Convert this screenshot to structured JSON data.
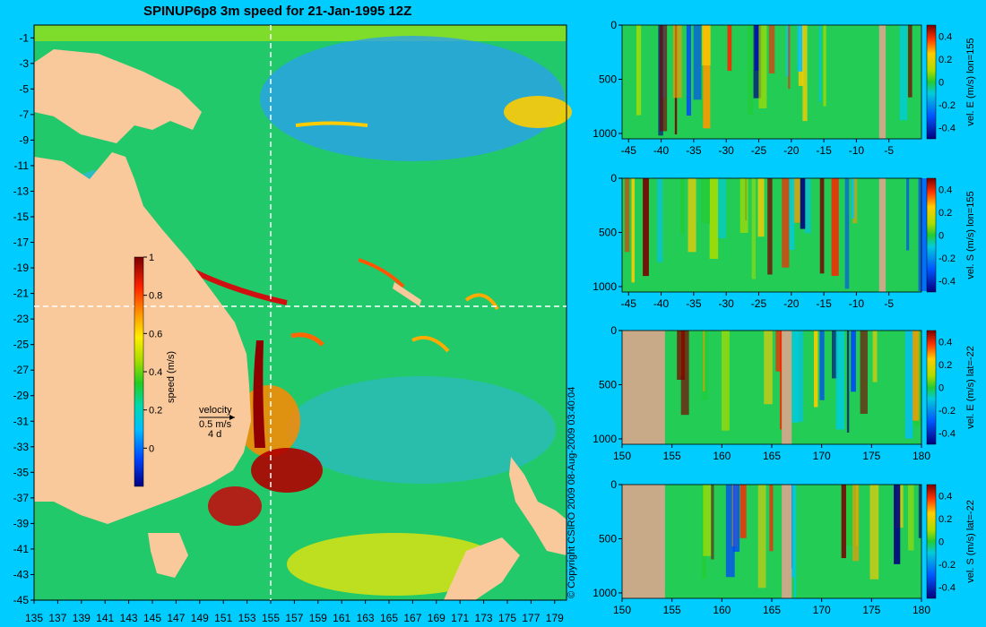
{
  "title": "SPINUP6p8 3m speed for 21-Jan-1995 12Z",
  "copyright": "© Copyright CSIRO 2009   08-Aug-2009 03:40:04",
  "colors": {
    "background": "#00ccff",
    "land": "#f9c89b",
    "section_land": "#c8aa88",
    "crosshair": "#ffffff"
  },
  "chart_data": [
    {
      "type": "heatmap",
      "name": "map",
      "xlabel": "",
      "ylabel": "",
      "xticks": [
        "135",
        "137",
        "139",
        "141",
        "143",
        "145",
        "147",
        "149",
        "151",
        "153",
        "155",
        "157",
        "159",
        "161",
        "163",
        "165",
        "167",
        "169",
        "171",
        "173",
        "175",
        "177",
        "179"
      ],
      "yticks": [
        "-1",
        "-3",
        "-5",
        "-7",
        "-9",
        "-11",
        "-13",
        "-15",
        "-17",
        "-19",
        "-21",
        "-23",
        "-25",
        "-27",
        "-29",
        "-31",
        "-33",
        "-35",
        "-37",
        "-39",
        "-41",
        "-43",
        "-45"
      ],
      "xlim": [
        135,
        180
      ],
      "ylim": [
        -45,
        0
      ],
      "crosshair": {
        "lon": 155,
        "lat": -22
      },
      "colorbar": {
        "label": "speed (m/s)",
        "ticks": [
          "1",
          "0.8",
          "0.6",
          "0.4",
          "0.2",
          "0"
        ],
        "range": [
          -0.2,
          1
        ]
      },
      "velocity_legend": {
        "title": "velocity",
        "value": "0.5 m/s",
        "note": "4 d"
      }
    },
    {
      "type": "heatmap",
      "name": "section-1",
      "label": "vel. E (m/s) lon=155",
      "xticks": [
        "-45",
        "-40",
        "-35",
        "-30",
        "-25",
        "-20",
        "-15",
        "-10",
        "-5"
      ],
      "xlim": [
        -46,
        0
      ],
      "yticks": [
        "0",
        "500",
        "1000"
      ],
      "ylim": [
        1050,
        0
      ],
      "colorbar_ticks": [
        "0.4",
        "0.2",
        "0",
        "-0.2",
        "-0.4"
      ]
    },
    {
      "type": "heatmap",
      "name": "section-2",
      "label": "vel. S (m/s) lon=155",
      "xticks": [
        "-45",
        "-40",
        "-35",
        "-30",
        "-25",
        "-20",
        "-15",
        "-10",
        "-5"
      ],
      "xlim": [
        -46,
        0
      ],
      "yticks": [
        "0",
        "500",
        "1000"
      ],
      "ylim": [
        1050,
        0
      ],
      "colorbar_ticks": [
        "0.4",
        "0.2",
        "0",
        "-0.2",
        "-0.4"
      ]
    },
    {
      "type": "heatmap",
      "name": "section-3",
      "label": "vel. E (m/s) lat=-22",
      "xticks": [
        "150",
        "155",
        "160",
        "165",
        "170",
        "175",
        "180"
      ],
      "xlim": [
        150,
        180
      ],
      "yticks": [
        "0",
        "500",
        "1000"
      ],
      "ylim": [
        1050,
        0
      ],
      "colorbar_ticks": [
        "0.4",
        "0.2",
        "0",
        "-0.2",
        "-0.4"
      ]
    },
    {
      "type": "heatmap",
      "name": "section-4",
      "label": "vel. S (m/s) lat=-22",
      "xticks": [
        "150",
        "155",
        "160",
        "165",
        "170",
        "175",
        "180"
      ],
      "xlim": [
        150,
        180
      ],
      "yticks": [
        "0",
        "500",
        "1000"
      ],
      "ylim": [
        1050,
        0
      ],
      "colorbar_ticks": [
        "0.4",
        "0.2",
        "0",
        "-0.2",
        "-0.4"
      ]
    }
  ]
}
